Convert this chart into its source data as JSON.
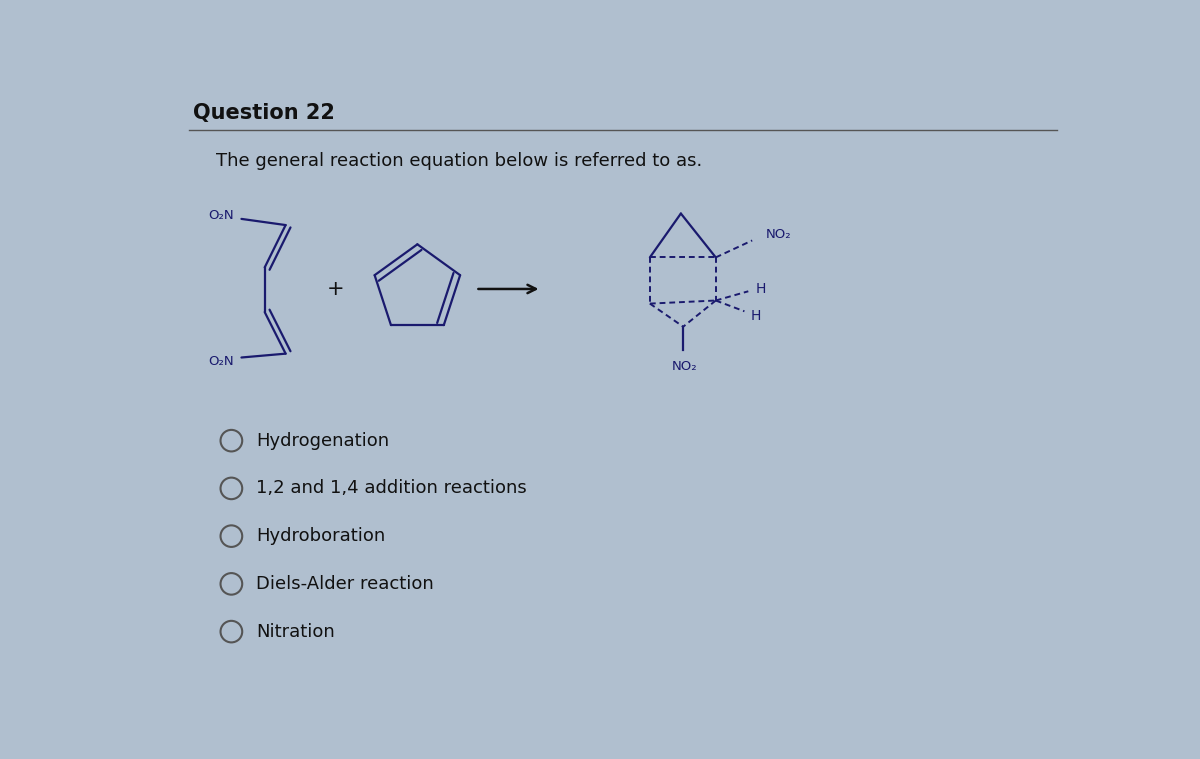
{
  "title": "Question 22",
  "subtitle": "The general reaction equation below is referred to as.",
  "background_color": "#b0bfcf",
  "title_color": "#111111",
  "title_fontsize": 15,
  "subtitle_fontsize": 13,
  "options": [
    "Hydrogenation",
    "1,2 and 1,4 addition reactions",
    "Hydroboration",
    "Diels-Alder reaction",
    "Nitration"
  ],
  "options_fontsize": 13,
  "circle_color": "#555555",
  "molecule_color": "#1a1a6e",
  "dashed_color": "#1a1a6e",
  "text_color": "#111111",
  "label_color": "#1a1a6e"
}
